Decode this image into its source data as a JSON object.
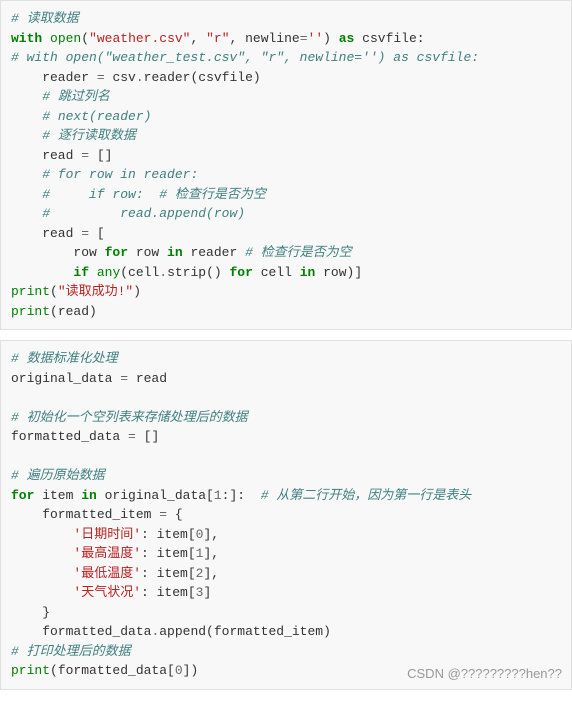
{
  "block1": {
    "lines": [
      [
        [
          "# 读取数据",
          "c-comment"
        ]
      ],
      [
        [
          "with",
          "c-keyword"
        ],
        [
          " ",
          "c-text"
        ],
        [
          "open",
          "c-builtin"
        ],
        [
          "(",
          "c-text"
        ],
        [
          "\"weather.csv\"",
          "c-string"
        ],
        [
          ", ",
          "c-text"
        ],
        [
          "\"r\"",
          "c-string"
        ],
        [
          ", newline",
          "c-text"
        ],
        [
          "=",
          "c-op"
        ],
        [
          "''",
          "c-string"
        ],
        [
          ") ",
          "c-text"
        ],
        [
          "as",
          "c-keyword"
        ],
        [
          " csvfile:",
          "c-text"
        ]
      ],
      [
        [
          "# with open(\"weather_test.csv\", \"r\", newline='') as csvfile:",
          "c-comment"
        ]
      ],
      [
        [
          "    reader ",
          "c-text"
        ],
        [
          "=",
          "c-op"
        ],
        [
          " csv",
          "c-text"
        ],
        [
          ".",
          "c-op"
        ],
        [
          "reader(csvfile)",
          "c-text"
        ]
      ],
      [
        [
          "    ",
          "c-text"
        ],
        [
          "# 跳过列名",
          "c-comment"
        ]
      ],
      [
        [
          "    ",
          "c-text"
        ],
        [
          "# next(reader)",
          "c-comment"
        ]
      ],
      [
        [
          "    ",
          "c-text"
        ],
        [
          "# 逐行读取数据",
          "c-comment"
        ]
      ],
      [
        [
          "    read ",
          "c-text"
        ],
        [
          "=",
          "c-op"
        ],
        [
          " []",
          "c-text"
        ]
      ],
      [
        [
          "    ",
          "c-text"
        ],
        [
          "# for row in reader:",
          "c-comment"
        ]
      ],
      [
        [
          "    ",
          "c-text"
        ],
        [
          "#     if row:  # 检查行是否为空",
          "c-comment"
        ]
      ],
      [
        [
          "    ",
          "c-text"
        ],
        [
          "#         read.append(row)",
          "c-comment"
        ]
      ],
      [
        [
          "    read ",
          "c-text"
        ],
        [
          "=",
          "c-op"
        ],
        [
          " [",
          "c-text"
        ]
      ],
      [
        [
          "        row ",
          "c-text"
        ],
        [
          "for",
          "c-keyword"
        ],
        [
          " row ",
          "c-text"
        ],
        [
          "in",
          "c-keyword"
        ],
        [
          " reader ",
          "c-text"
        ],
        [
          "# 检查行是否为空",
          "c-comment"
        ]
      ],
      [
        [
          "        ",
          "c-text"
        ],
        [
          "if",
          "c-keyword"
        ],
        [
          " ",
          "c-text"
        ],
        [
          "any",
          "c-builtin"
        ],
        [
          "(cell",
          "c-text"
        ],
        [
          ".",
          "c-op"
        ],
        [
          "strip() ",
          "c-text"
        ],
        [
          "for",
          "c-keyword"
        ],
        [
          " cell ",
          "c-text"
        ],
        [
          "in",
          "c-keyword"
        ],
        [
          " row)]",
          "c-text"
        ]
      ],
      [
        [
          "print",
          "c-builtin"
        ],
        [
          "(",
          "c-text"
        ],
        [
          "\"读取成功!\"",
          "c-string"
        ],
        [
          ")",
          "c-text"
        ]
      ],
      [
        [
          "print",
          "c-builtin"
        ],
        [
          "(read)",
          "c-text"
        ]
      ]
    ]
  },
  "block2": {
    "lines": [
      [
        [
          "# 数据标准化处理",
          "c-comment"
        ]
      ],
      [
        [
          "original_data ",
          "c-text"
        ],
        [
          "=",
          "c-op"
        ],
        [
          " read",
          "c-text"
        ]
      ],
      [
        [
          "",
          ""
        ]
      ],
      [
        [
          "# 初始化一个空列表来存储处理后的数据",
          "c-comment"
        ]
      ],
      [
        [
          "formatted_data ",
          "c-text"
        ],
        [
          "=",
          "c-op"
        ],
        [
          " []",
          "c-text"
        ]
      ],
      [
        [
          "",
          ""
        ]
      ],
      [
        [
          "# 遍历原始数据",
          "c-comment"
        ]
      ],
      [
        [
          "for",
          "c-keyword"
        ],
        [
          " item ",
          "c-text"
        ],
        [
          "in",
          "c-keyword"
        ],
        [
          " original_data[",
          "c-text"
        ],
        [
          "1",
          "c-number"
        ],
        [
          ":]:  ",
          "c-text"
        ],
        [
          "# 从第二行开始，因为第一行是表头",
          "c-comment"
        ]
      ],
      [
        [
          "    formatted_item ",
          "c-text"
        ],
        [
          "=",
          "c-op"
        ],
        [
          " {",
          "c-text"
        ]
      ],
      [
        [
          "        ",
          "c-text"
        ],
        [
          "'日期时间'",
          "c-string"
        ],
        [
          ": item[",
          "c-text"
        ],
        [
          "0",
          "c-number"
        ],
        [
          "],",
          "c-text"
        ]
      ],
      [
        [
          "        ",
          "c-text"
        ],
        [
          "'最高温度'",
          "c-string"
        ],
        [
          ": item[",
          "c-text"
        ],
        [
          "1",
          "c-number"
        ],
        [
          "],",
          "c-text"
        ]
      ],
      [
        [
          "        ",
          "c-text"
        ],
        [
          "'最低温度'",
          "c-string"
        ],
        [
          ": item[",
          "c-text"
        ],
        [
          "2",
          "c-number"
        ],
        [
          "],",
          "c-text"
        ]
      ],
      [
        [
          "        ",
          "c-text"
        ],
        [
          "'天气状况'",
          "c-string"
        ],
        [
          ": item[",
          "c-text"
        ],
        [
          "3",
          "c-number"
        ],
        [
          "]",
          "c-text"
        ]
      ],
      [
        [
          "    }",
          "c-text"
        ]
      ],
      [
        [
          "    formatted_data",
          "c-text"
        ],
        [
          ".",
          "c-op"
        ],
        [
          "append(formatted_item)",
          "c-text"
        ]
      ],
      [
        [
          "# 打印处理后的数据",
          "c-comment"
        ]
      ],
      [
        [
          "print",
          "c-builtin"
        ],
        [
          "(formatted_data[",
          "c-text"
        ],
        [
          "0",
          "c-number"
        ],
        [
          "])",
          "c-text"
        ]
      ]
    ]
  },
  "watermark": "CSDN @?????????hen??"
}
